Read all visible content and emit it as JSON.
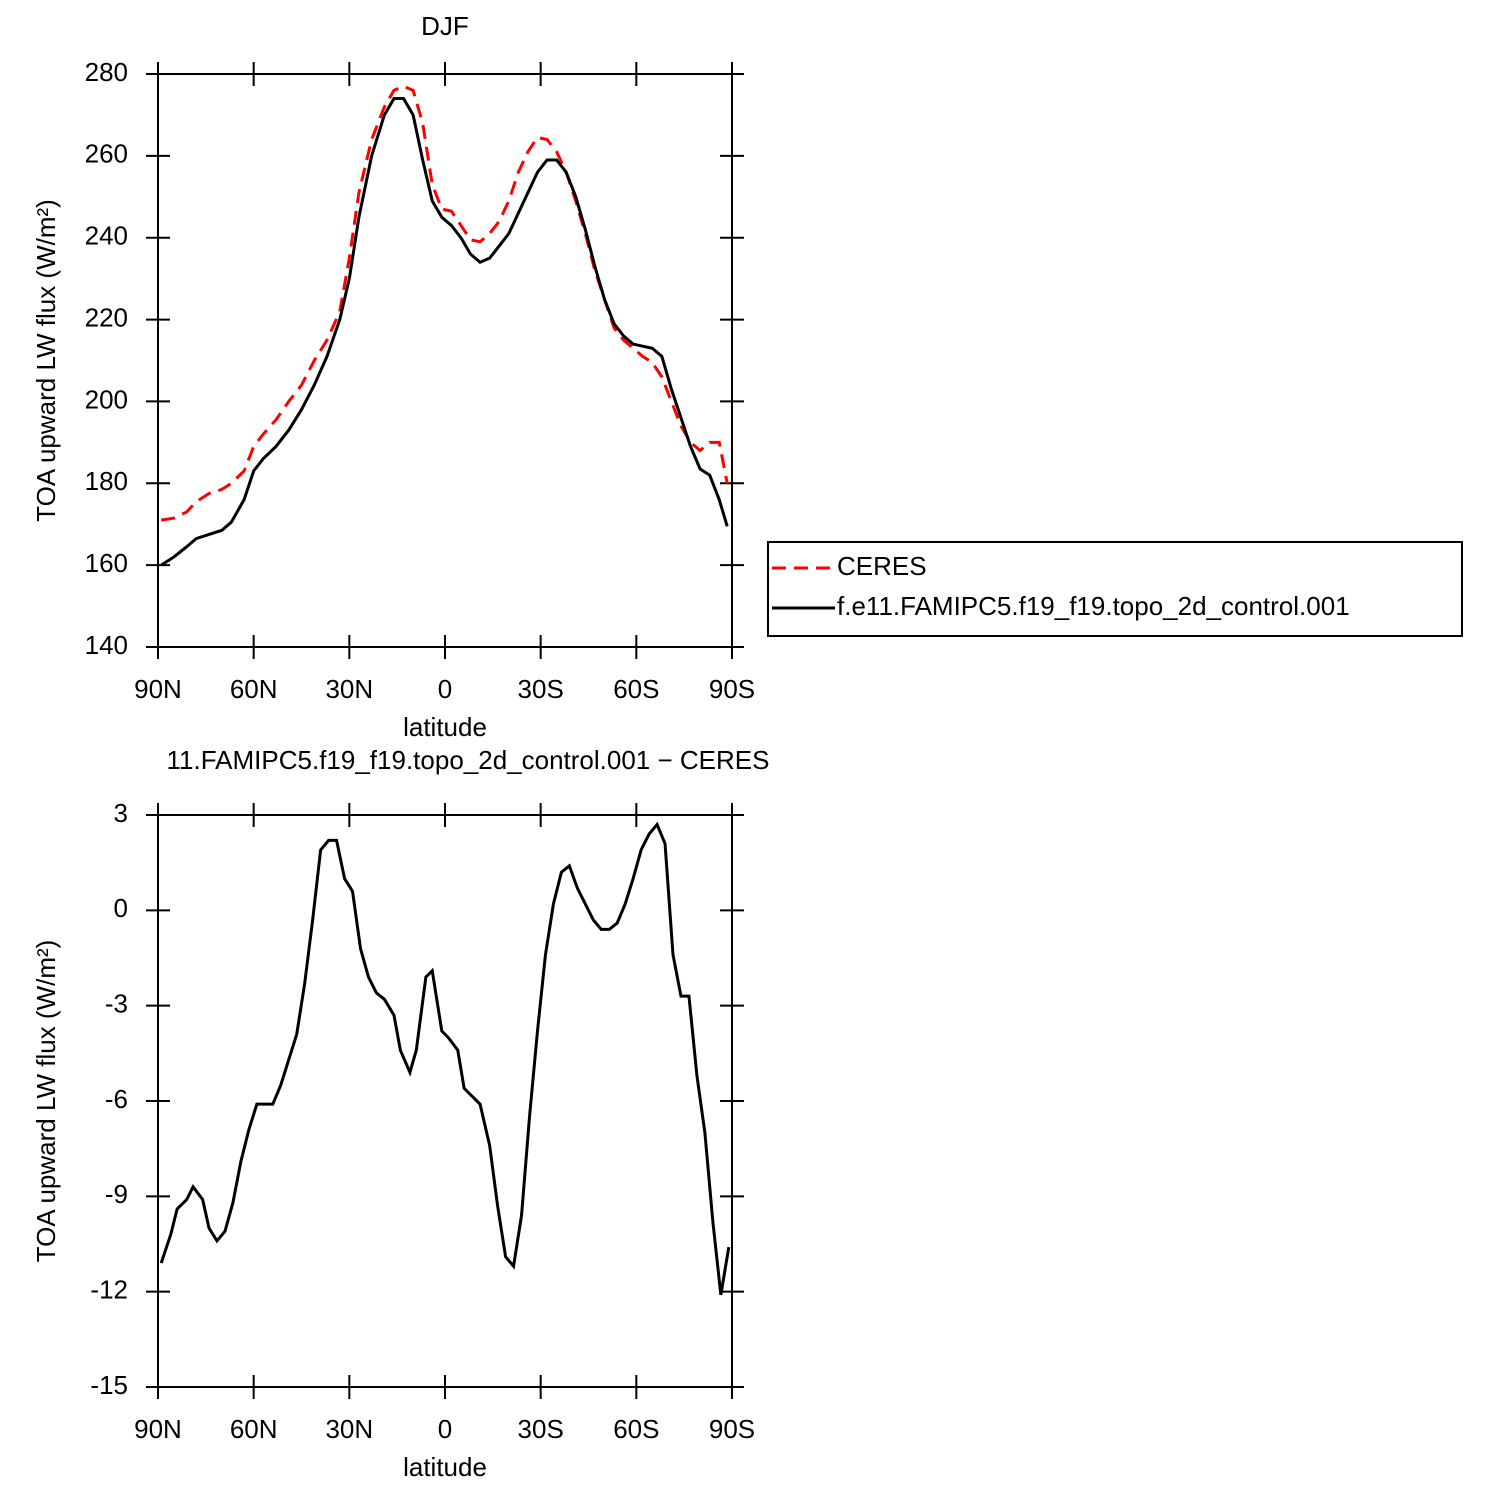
{
  "chart_data": [
    {
      "type": "line",
      "title": "DJF",
      "xlabel": "latitude",
      "ylabel": "TOA upward LW flux (W/m²)",
      "x": [
        89,
        85,
        81,
        78,
        74,
        70,
        67,
        63,
        60,
        57,
        53,
        49,
        45,
        41,
        37,
        33,
        30,
        27,
        23,
        19,
        16,
        13,
        10,
        7,
        4,
        1,
        -2,
        -5,
        -8,
        -11,
        -14,
        -17,
        -20,
        -23,
        -26,
        -29,
        -32,
        -35,
        -38,
        -41,
        -44,
        -47,
        -50,
        -53,
        -56,
        -59,
        -62,
        -65,
        -68,
        -71,
        -74,
        -77,
        -80,
        -83,
        -86,
        -88.5
      ],
      "series": [
        {
          "name": "CERES",
          "color": "#ff0000",
          "dashed": true,
          "values": [
            171,
            171.5,
            173,
            175.5,
            177.5,
            178.5,
            180,
            183,
            189,
            192,
            195.5,
            200,
            204,
            210,
            215,
            222,
            235,
            251,
            264,
            272,
            276,
            277,
            276,
            268,
            253,
            247,
            246.5,
            243,
            239.5,
            239,
            241,
            244,
            249,
            256,
            261,
            264.5,
            264,
            261,
            256,
            249,
            241,
            232,
            225,
            218,
            215,
            213,
            211,
            209.5,
            206,
            200,
            194,
            190,
            188,
            190,
            190,
            180
          ]
        },
        {
          "name": "f.e11.FAMIPC5.f19_f19.topo_2d_control.001",
          "color": "#000000",
          "dashed": false,
          "values": [
            160,
            162,
            164.5,
            166.5,
            167.5,
            168.5,
            170.5,
            176,
            183,
            186,
            189,
            193,
            198,
            204,
            211,
            220,
            230,
            245,
            260,
            270,
            274,
            274,
            270,
            259,
            249,
            245,
            243,
            240,
            236,
            234,
            235,
            238,
            241,
            246,
            251,
            256,
            259,
            259,
            256,
            250,
            242,
            233,
            225,
            219,
            216,
            214,
            213.5,
            213,
            211,
            203,
            196,
            189,
            183.5,
            182,
            176,
            169.5
          ]
        }
      ],
      "xlim": [
        90,
        -90
      ],
      "xticks": [
        {
          "value": 90,
          "label": "90N"
        },
        {
          "value": 60,
          "label": "60N"
        },
        {
          "value": 30,
          "label": "30N"
        },
        0,
        {
          "value": -30,
          "label": "30S"
        },
        {
          "value": -60,
          "label": "60S"
        },
        {
          "value": -90,
          "label": "90S"
        }
      ],
      "ylim": [
        140,
        280
      ],
      "yticks": [
        140,
        160,
        180,
        200,
        220,
        240,
        260,
        280
      ],
      "legend": "right"
    },
    {
      "type": "line",
      "title": "11.FAMIPC5.f19_f19.topo_2d_control.001 − CERES",
      "xlabel": "latitude",
      "ylabel": "TOA upward LW flux (W/m²)",
      "x": [
        89,
        86,
        84,
        81,
        79,
        76,
        74,
        71.5,
        69,
        66.5,
        64,
        61.5,
        59,
        56.5,
        54,
        51.5,
        49,
        46.5,
        44,
        41.5,
        39,
        36.5,
        34,
        31.5,
        29,
        26.5,
        24,
        21.5,
        19,
        16,
        14,
        11,
        9,
        6,
        4,
        1,
        -1,
        -4,
        -6,
        -9,
        -11,
        -14,
        -16.5,
        -19,
        -21.5,
        -24,
        -26.5,
        -29,
        -31.5,
        -34,
        -36.5,
        -39,
        -41.5,
        -44,
        -46.5,
        -49,
        -51.5,
        -54,
        -56.5,
        -59,
        -61.5,
        -64,
        -66.5,
        -69,
        -71.5,
        -74,
        -76.5,
        -79,
        -81.5,
        -84,
        -86.5,
        -89
      ],
      "values": [
        -11.1,
        -10.2,
        -9.4,
        -9.1,
        -8.7,
        -9.1,
        -10.0,
        -10.4,
        -10.1,
        -9.2,
        -7.9,
        -6.9,
        -6.1,
        -6.1,
        -6.1,
        -5.5,
        -4.7,
        -3.9,
        -2.3,
        -0.3,
        1.9,
        2.2,
        2.2,
        1.0,
        0.6,
        -1.2,
        -2.1,
        -2.6,
        -2.8,
        -3.3,
        -4.4,
        -5.1,
        -4.4,
        -2.1,
        -1.9,
        -3.8,
        -4.0,
        -4.4,
        -5.6,
        -5.9,
        -6.1,
        -7.4,
        -9.3,
        -10.9,
        -11.2,
        -9.6,
        -6.5,
        -3.8,
        -1.4,
        0.2,
        1.2,
        1.4,
        0.7,
        0.2,
        -0.3,
        -0.6,
        -0.6,
        -0.4,
        0.2,
        1.0,
        1.9,
        2.4,
        2.7,
        2.1,
        -1.4,
        -2.7,
        -2.7,
        -5.2,
        -7.0,
        -9.8,
        -12.1,
        -10.6
      ],
      "color": "#000000",
      "xlim": [
        90,
        -90
      ],
      "xticks": [
        {
          "value": 90,
          "label": "90N"
        },
        {
          "value": 60,
          "label": "60N"
        },
        {
          "value": 30,
          "label": "30N"
        },
        0,
        {
          "value": -30,
          "label": "30S"
        },
        {
          "value": -60,
          "label": "60S"
        },
        {
          "value": -90,
          "label": "90S"
        }
      ],
      "ylim": [
        -15,
        3
      ],
      "yticks": [
        -15,
        -12,
        -9,
        -6,
        -3,
        0,
        3
      ]
    }
  ]
}
